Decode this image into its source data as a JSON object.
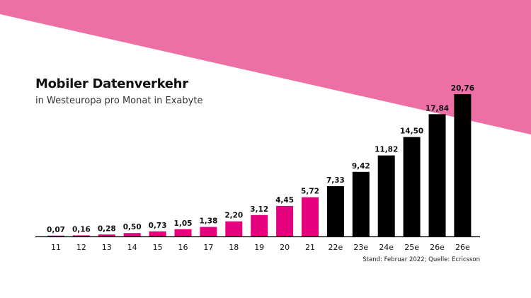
{
  "title": "Mobiler Datenverkehr",
  "subtitle": "in Westeuropa pro Monat in Exabyte",
  "source": "Stand: Februar 2022; Quelle: Ecricsson",
  "colors": {
    "background_band": "#EC6FA6",
    "actual": "#E5007E",
    "estimate": "#000000",
    "text": "#111111"
  },
  "chart_data": {
    "type": "bar",
    "categories": [
      "11",
      "12",
      "13",
      "14",
      "15",
      "16",
      "17",
      "18",
      "19",
      "20",
      "21",
      "22e",
      "23e",
      "24e",
      "25e",
      "26e",
      "26e"
    ],
    "values": [
      0.07,
      0.16,
      0.28,
      0.5,
      0.73,
      1.05,
      1.38,
      2.2,
      3.12,
      4.45,
      5.72,
      7.33,
      9.42,
      11.82,
      14.5,
      17.84,
      20.76
    ],
    "value_labels": [
      "0,07",
      "0,16",
      "0,28",
      "0,50",
      "0,73",
      "1,05",
      "1,38",
      "2,20",
      "3,12",
      "4,45",
      "5,72",
      "7,33",
      "9,42",
      "11,82",
      "14,50",
      "17,84",
      "20,76"
    ],
    "kind": [
      "actual",
      "actual",
      "actual",
      "actual",
      "actual",
      "actual",
      "actual",
      "actual",
      "actual",
      "actual",
      "actual",
      "estimate",
      "estimate",
      "estimate",
      "estimate",
      "estimate",
      "estimate"
    ],
    "title": "Mobiler Datenverkehr",
    "xlabel": "",
    "ylabel": "",
    "ylim": [
      0,
      20.76
    ],
    "grid": false,
    "legend": "none"
  }
}
